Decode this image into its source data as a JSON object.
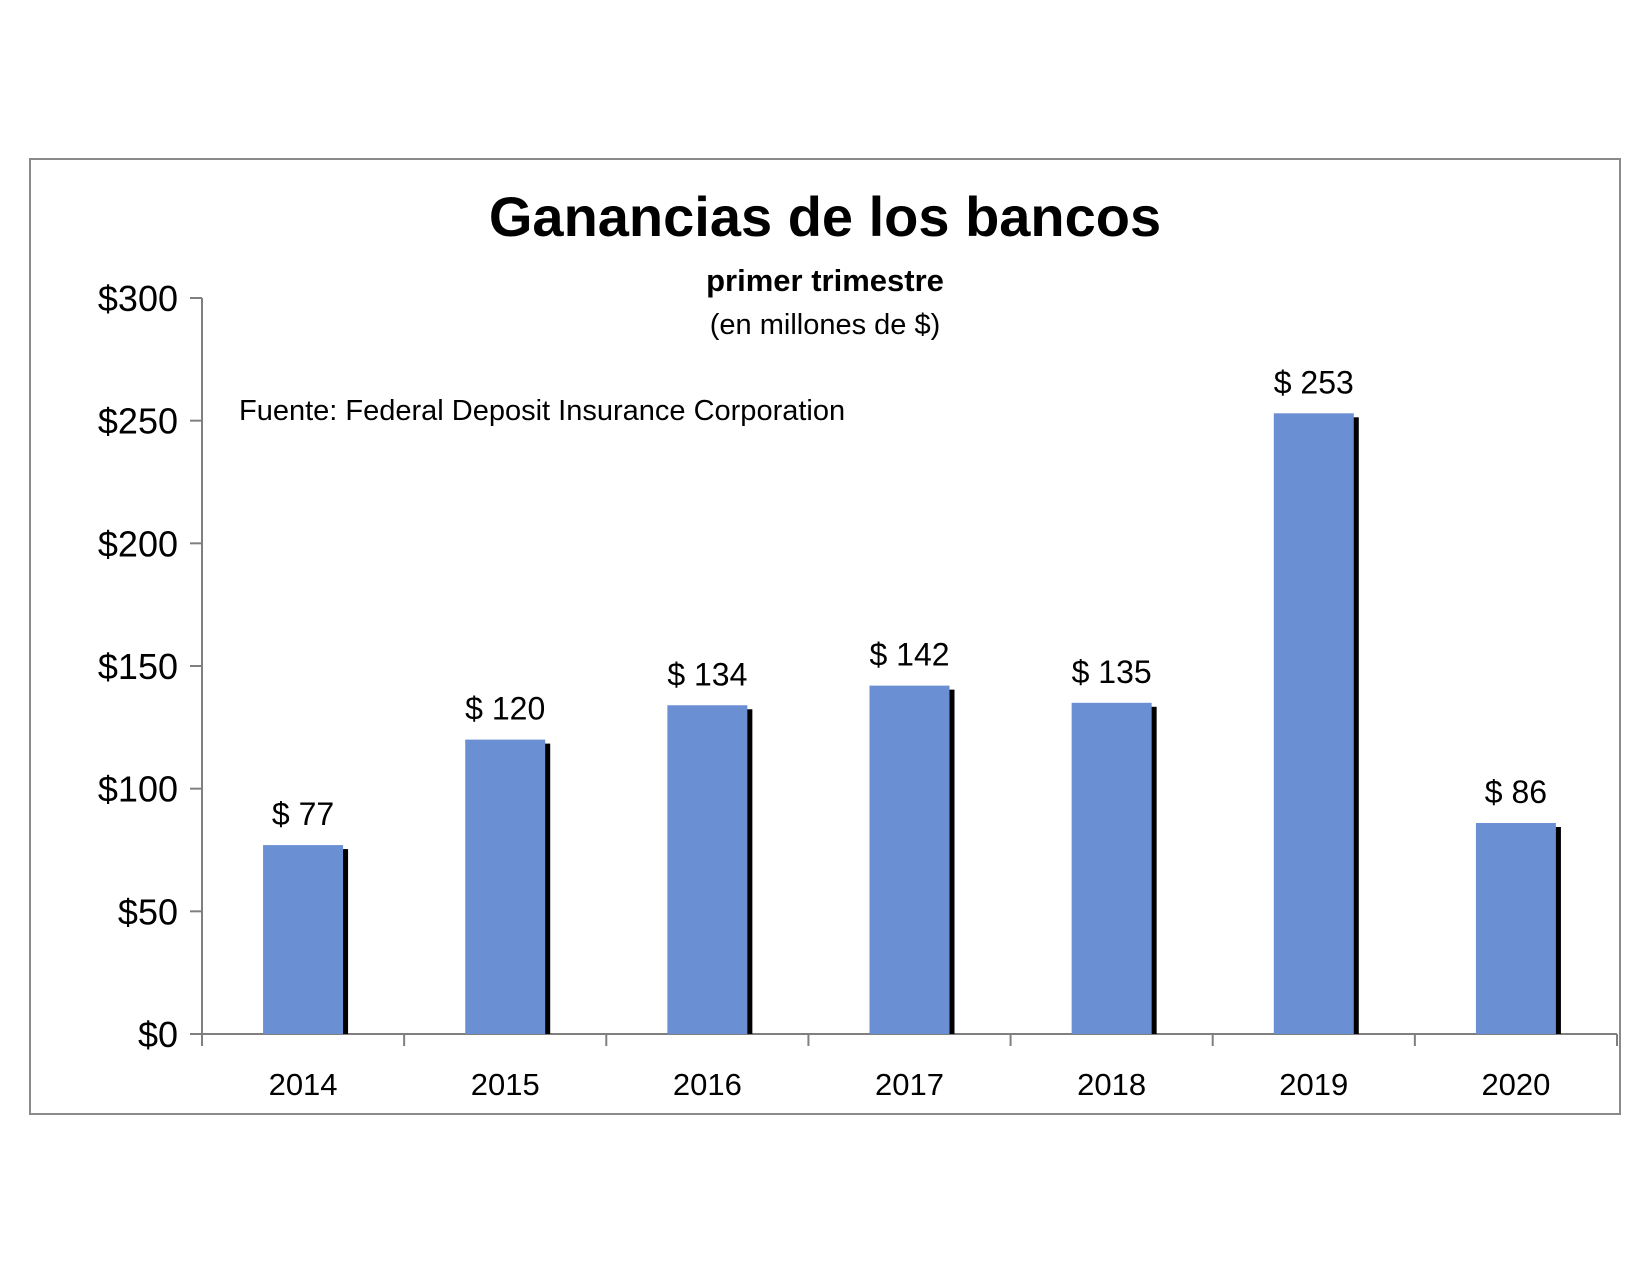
{
  "chart_data": {
    "type": "bar",
    "title": "Ganancias de los bancos",
    "subtitle": "primer trimestre",
    "units_note": "(en millones de $)",
    "source_note": "Fuente: Federal Deposit Insurance Corporation",
    "categories": [
      "2014",
      "2015",
      "2016",
      "2017",
      "2018",
      "2019",
      "2020"
    ],
    "values": [
      77,
      120,
      134,
      142,
      135,
      253,
      86
    ],
    "data_labels": [
      "$ 77",
      "$ 120",
      "$ 134",
      "$ 142",
      "$ 135",
      "$ 253",
      "$ 86"
    ],
    "yticks": [
      0,
      50,
      100,
      150,
      200,
      250,
      300
    ],
    "ytick_labels": [
      "$0",
      "$50",
      "$100",
      "$150",
      "$200",
      "$250",
      "$300"
    ],
    "ylim": [
      0,
      300
    ],
    "xlabel": "",
    "ylabel": "",
    "grid": false,
    "bar_color": "#6a8fd3",
    "shadow_color": "#000000"
  }
}
